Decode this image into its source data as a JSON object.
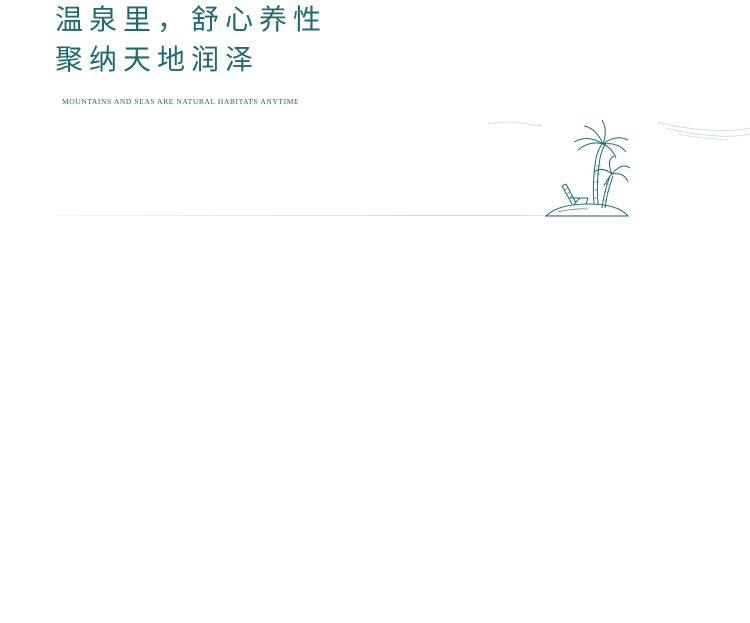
{
  "headline": {
    "line1": "温泉里，舒心养性",
    "line2": "聚纳天地润泽"
  },
  "subtitle": "MOUNTAINS AND SEAS ARE NATURAL HABITATS ANYTIME",
  "colors": {
    "accent": "#1f6b72",
    "background": "#ffffff"
  },
  "illustration": {
    "icon": "palm-tree-beach-chair-icon"
  }
}
